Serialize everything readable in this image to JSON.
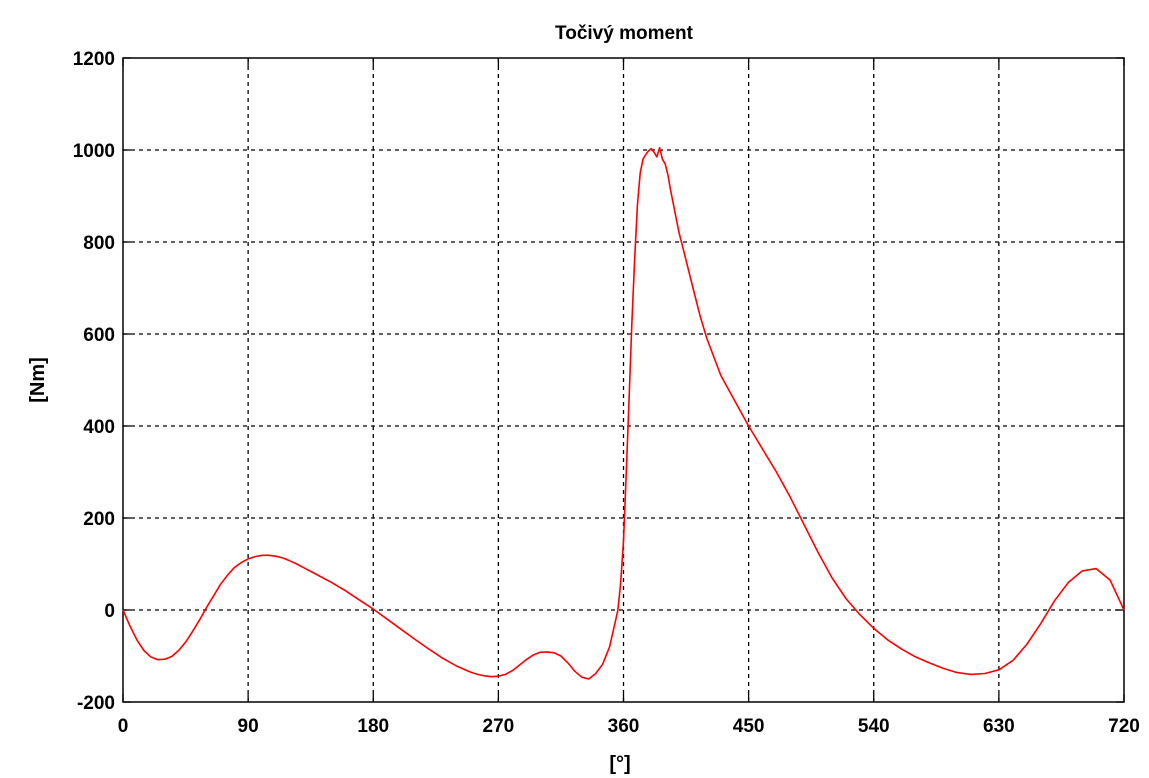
{
  "chart_data": {
    "type": "line",
    "title": "Točivý moment",
    "xlabel": "[°]",
    "ylabel": "[Nm]",
    "xlim": [
      0,
      720
    ],
    "ylim": [
      -200,
      1200
    ],
    "xticks": [
      0,
      90,
      180,
      270,
      360,
      450,
      540,
      630,
      720
    ],
    "yticks": [
      -200,
      0,
      200,
      400,
      600,
      800,
      1000,
      1200
    ],
    "xtick_labels": [
      "0",
      "90",
      "180",
      "270",
      "360",
      "450",
      "540",
      "630",
      "720"
    ],
    "ytick_labels": [
      "-200",
      "0",
      "200",
      "400",
      "600",
      "800",
      "1000",
      "1200"
    ],
    "grid": true,
    "series": [
      {
        "color": "#ff0000",
        "x": [
          0,
          5,
          10,
          15,
          20,
          25,
          30,
          35,
          40,
          45,
          50,
          55,
          60,
          65,
          70,
          75,
          80,
          85,
          90,
          95,
          100,
          105,
          110,
          115,
          120,
          125,
          130,
          140,
          150,
          160,
          170,
          180,
          190,
          200,
          210,
          220,
          230,
          240,
          250,
          255,
          260,
          265,
          270,
          275,
          280,
          285,
          290,
          295,
          300,
          305,
          310,
          315,
          320,
          325,
          330,
          335,
          340,
          345,
          350,
          353,
          356,
          358,
          360,
          362,
          364,
          366,
          368,
          370,
          372,
          374,
          376,
          378,
          380,
          382,
          384,
          386,
          388,
          390,
          392,
          394,
          396,
          398,
          400,
          405,
          410,
          415,
          420,
          430,
          440,
          450,
          460,
          470,
          480,
          490,
          500,
          510,
          520,
          530,
          540,
          550,
          560,
          570,
          580,
          590,
          600,
          610,
          620,
          630,
          640,
          650,
          660,
          670,
          680,
          690,
          700,
          710,
          720
        ],
        "y": [
          0,
          -35,
          -65,
          -88,
          -102,
          -108,
          -107,
          -101,
          -88,
          -70,
          -47,
          -22,
          5,
          30,
          55,
          75,
          92,
          103,
          111,
          116,
          119,
          119,
          117,
          113,
          107,
          100,
          92,
          76,
          60,
          42,
          22,
          2,
          -20,
          -42,
          -64,
          -85,
          -105,
          -122,
          -135,
          -140,
          -143,
          -145,
          -144,
          -140,
          -132,
          -120,
          -108,
          -98,
          -92,
          -91,
          -93,
          -100,
          -115,
          -133,
          -146,
          -150,
          -138,
          -118,
          -80,
          -40,
          0,
          60,
          150,
          300,
          460,
          620,
          760,
          880,
          950,
          980,
          990,
          998,
          1003,
          995,
          985,
          1005,
          980,
          970,
          945,
          910,
          880,
          850,
          820,
          760,
          700,
          640,
          590,
          510,
          455,
          400,
          350,
          300,
          245,
          185,
          125,
          70,
          25,
          -10,
          -40,
          -65,
          -85,
          -102,
          -115,
          -127,
          -136,
          -140,
          -138,
          -130,
          -110,
          -75,
          -30,
          20,
          60,
          85,
          90,
          65,
          0
        ]
      }
    ]
  }
}
